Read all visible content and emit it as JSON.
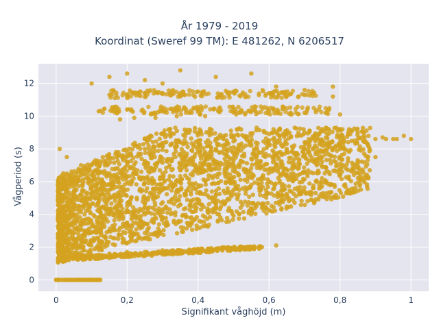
{
  "chart_data": {
    "type": "scatter",
    "title": "År 1979 - 2019",
    "subtitle": "Koordinat (Sweref 99 TM): E 481262, N 6206517",
    "xlabel": "Signifikant våghöjd (m)",
    "ylabel": "Vågperiod (s)",
    "xlim": [
      -0.05,
      1.05
    ],
    "ylim": [
      -0.7,
      13.2
    ],
    "x_ticks": [
      0,
      0.2,
      0.4,
      0.6,
      0.8,
      1
    ],
    "x_tick_labels": [
      "0",
      "0,2",
      "0,4",
      "0,6",
      "0,8",
      "1"
    ],
    "y_ticks": [
      0,
      2,
      4,
      6,
      8,
      10,
      12
    ],
    "y_tick_labels": [
      "0",
      "2",
      "4",
      "6",
      "8",
      "10",
      "12"
    ],
    "grid": true,
    "marker_color": "#d4a21f",
    "plot_background": "#e5e5ef",
    "series": [
      {
        "x": [
          0.0,
          0.02,
          0.05,
          0.08,
          0.12,
          0.01,
          0.03,
          0.06,
          0.09,
          0.13,
          0.05,
          0.1,
          0.15,
          0.2,
          0.25,
          0.3,
          0.35,
          0.4,
          0.45,
          0.5,
          0.55,
          0.58,
          0.62,
          0.05,
          0.08,
          0.12,
          0.15,
          0.2,
          0.25,
          0.3,
          0.35,
          0.4,
          0.45,
          0.5,
          0.08,
          0.12,
          0.15,
          0.2,
          0.25,
          0.3,
          0.35,
          0.4,
          0.45,
          0.5,
          0.55,
          0.6,
          0.65,
          0.7,
          0.75,
          0.8,
          0.1,
          0.15,
          0.2,
          0.25,
          0.3,
          0.35,
          0.4,
          0.45,
          0.5,
          0.55,
          0.6,
          0.65,
          0.7,
          0.75,
          0.8,
          0.85,
          0.1,
          0.15,
          0.2,
          0.25,
          0.3,
          0.35,
          0.4,
          0.45,
          0.5,
          0.55,
          0.6,
          0.65,
          0.7,
          0.75,
          0.8,
          0.85,
          0.88,
          0.92,
          0.95,
          0.98,
          1.0,
          0.15,
          0.2,
          0.25,
          0.3,
          0.35,
          0.4,
          0.45,
          0.5,
          0.55,
          0.6,
          0.65,
          0.7,
          0.75,
          0.8,
          0.85,
          0.9,
          0.12,
          0.2,
          0.3,
          0.4,
          0.5,
          0.6,
          0.7,
          0.8,
          0.15,
          0.2,
          0.25,
          0.3,
          0.4,
          0.5,
          0.6,
          0.7,
          0.78,
          0.1,
          0.15,
          0.2,
          0.25,
          0.3,
          0.35,
          0.45,
          0.55,
          0.62,
          0.7,
          0.78,
          0.18,
          0.22,
          0.28,
          0.34,
          0.42,
          0.09,
          0.12,
          0.06,
          0.04,
          0.02,
          0.01,
          0.03,
          0.07,
          0.05,
          0.11,
          0.14,
          0.17,
          0.2,
          0.24,
          0.27,
          0.32,
          0.37,
          0.43,
          0.48,
          0.53,
          0.57,
          0.61,
          0.65,
          0.69,
          0.73,
          0.77,
          0.81,
          0.84,
          0.87,
          0.9,
          0.93,
          0.96
        ],
        "y": [
          0.0,
          0.0,
          0.0,
          0.0,
          0.0,
          1.2,
          1.3,
          1.3,
          1.4,
          1.5,
          1.4,
          1.5,
          1.6,
          1.7,
          1.7,
          1.8,
          1.8,
          1.9,
          1.9,
          1.9,
          2.0,
          2.0,
          2.1,
          2.5,
          3.0,
          3.5,
          4.0,
          4.5,
          5.0,
          5.5,
          6.0,
          6.5,
          6.8,
          7.0,
          4.0,
          5.0,
          5.5,
          6.0,
          6.2,
          6.5,
          6.7,
          6.9,
          7.1,
          7.3,
          7.4,
          7.6,
          7.8,
          8.0,
          8.2,
          8.3,
          6.0,
          6.5,
          7.0,
          7.2,
          7.4,
          7.6,
          7.8,
          8.0,
          8.1,
          8.2,
          8.3,
          8.3,
          8.4,
          8.5,
          8.6,
          8.6,
          7.0,
          7.5,
          7.8,
          8.0,
          8.2,
          8.4,
          8.5,
          8.6,
          8.7,
          8.8,
          8.9,
          9.0,
          9.0,
          9.1,
          9.2,
          9.0,
          8.8,
          8.7,
          8.6,
          8.8,
          8.6,
          3.0,
          3.5,
          4.0,
          4.3,
          4.6,
          4.9,
          5.2,
          5.5,
          5.8,
          6.0,
          6.3,
          6.6,
          6.9,
          7.1,
          7.3,
          7.5,
          10.3,
          10.4,
          10.4,
          10.4,
          10.4,
          10.3,
          10.2,
          10.1,
          11.3,
          11.3,
          11.4,
          11.4,
          11.5,
          11.5,
          11.4,
          11.3,
          11.2,
          12.0,
          12.4,
          12.6,
          12.2,
          12.0,
          12.8,
          12.4,
          12.6,
          11.8,
          11.6,
          11.8,
          9.8,
          9.9,
          9.9,
          10.0,
          10.0,
          2.2,
          2.4,
          3.2,
          4.5,
          6.5,
          8.0,
          7.5,
          7.0,
          6.0,
          5.0,
          5.5,
          6.0,
          6.3,
          6.6,
          6.8,
          7.0,
          7.2,
          7.4,
          7.6,
          7.7,
          7.8,
          7.9,
          8.0,
          8.1,
          8.2,
          8.3,
          8.4,
          8.5,
          8.5,
          8.6,
          8.6,
          8.6
        ]
      }
    ]
  }
}
